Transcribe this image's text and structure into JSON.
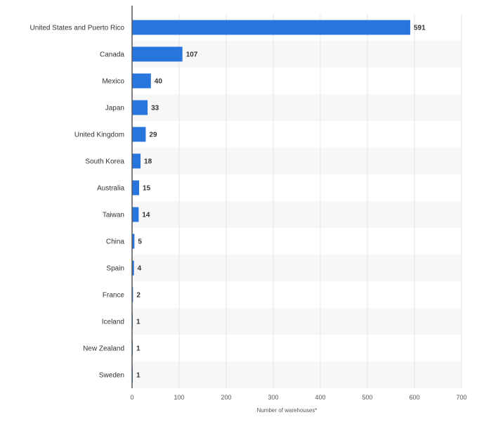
{
  "chart_data": {
    "type": "bar",
    "orientation": "horizontal",
    "categories": [
      "United States and Puerto Rico",
      "Canada",
      "Mexico",
      "Japan",
      "United Kingdom",
      "South Korea",
      "Australia",
      "Taiwan",
      "China",
      "Spain",
      "France",
      "Iceland",
      "New Zealand",
      "Sweden"
    ],
    "values": [
      591,
      107,
      40,
      33,
      29,
      18,
      15,
      14,
      5,
      4,
      2,
      1,
      1,
      1
    ],
    "xlabel": "Number of warehouses*",
    "ylabel": "",
    "xlim": [
      0,
      700
    ],
    "xticks": [
      0,
      100,
      200,
      300,
      400,
      500,
      600,
      700
    ],
    "grid": true,
    "legend": "none",
    "colors": {
      "bar": "#2876dd",
      "stripe": "#f7f7f7",
      "grid": "#e4e4e4",
      "axis": "#555555",
      "text": "#333333"
    }
  }
}
